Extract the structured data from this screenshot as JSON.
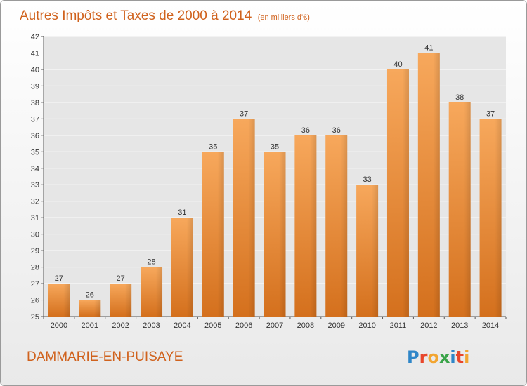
{
  "chart_data": {
    "type": "bar",
    "title": "Autres Impôts et Taxes de 2000 à 2014",
    "unit": "(en milliers d'€)",
    "categories": [
      "2000",
      "2001",
      "2002",
      "2003",
      "2004",
      "2005",
      "2006",
      "2007",
      "2008",
      "2009",
      "2010",
      "2011",
      "2012",
      "2013",
      "2014"
    ],
    "values": [
      27,
      26,
      27,
      28,
      31,
      35,
      37,
      35,
      36,
      36,
      33,
      40,
      41,
      38,
      37
    ],
    "ylim": [
      25,
      42
    ],
    "yticks": [
      25,
      26,
      27,
      28,
      29,
      30,
      31,
      32,
      33,
      34,
      35,
      36,
      37,
      38,
      39,
      40,
      41,
      42
    ],
    "grid": true,
    "bar_color": "#f0922e",
    "xlabel": "",
    "ylabel": ""
  },
  "footer": {
    "city": "DAMMARIE-EN-PUISAYE",
    "logo": "Proxiti"
  },
  "colors": {
    "title": "#d0621d",
    "bar_top": "#f6a75a",
    "bar_bottom": "#d8711c",
    "grid": "#ffffff",
    "plot_bg": "#e6e6e6"
  }
}
